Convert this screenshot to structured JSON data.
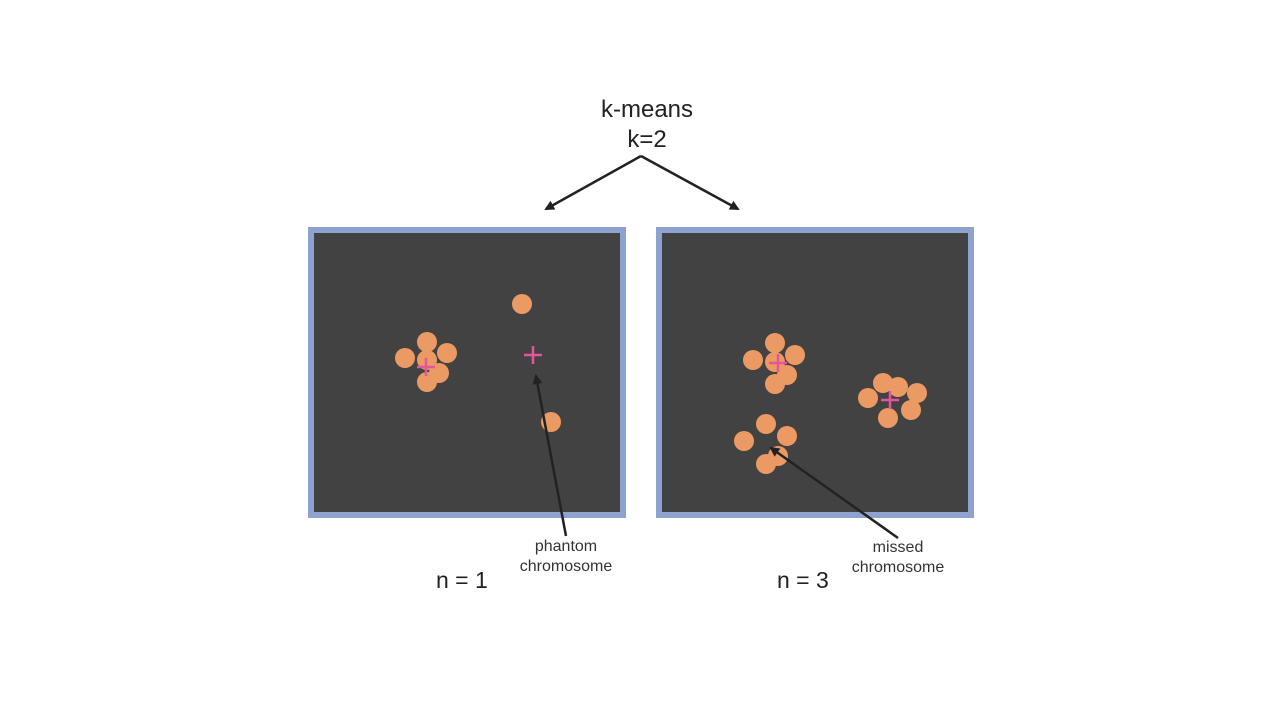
{
  "title": {
    "line1": "k-means",
    "line2": "k=2"
  },
  "colors": {
    "background": "#ffffff",
    "panel_fill": "#424242",
    "panel_border": "#8ea2cf",
    "point": "#ec9a64",
    "centroid": "#e4559c",
    "arrow": "#222222"
  },
  "panels": [
    {
      "caption_line1": "phantom",
      "caption_line2": "chromosome",
      "n_label": "n = 1"
    },
    {
      "caption_line1": "missed",
      "caption_line2": "chromosome",
      "n_label": "n = 3"
    }
  ]
}
